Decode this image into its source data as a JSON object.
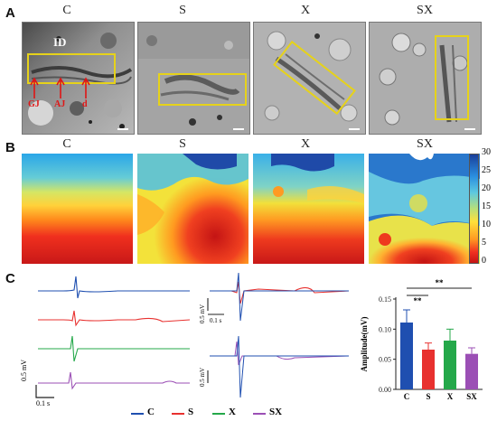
{
  "panel_a": {
    "letter": "A",
    "columns": [
      "C",
      "S",
      "X",
      "SX"
    ],
    "inset_labels": {
      "id": "ID",
      "gj": "GJ",
      "aj": "AJ",
      "d": "d"
    }
  },
  "panel_b": {
    "letter": "B",
    "columns": [
      "C",
      "S",
      "X",
      "SX"
    ],
    "colorbar_ticks": [
      "30",
      "25",
      "20",
      "15",
      "10",
      "5",
      "0"
    ]
  },
  "panel_c": {
    "letter": "C",
    "scale_voltage": "0.5 mV",
    "scale_time": "0.1 s",
    "legend": [
      "C",
      "S",
      "X",
      "SX"
    ]
  },
  "colors": {
    "C": "#1f4fb0",
    "S": "#e8312f",
    "X": "#24a84a",
    "SX": "#9b4fb5",
    "box": "#e6d21a",
    "arrow": "#e01515"
  },
  "chart_data": {
    "type": "bar",
    "categories": [
      "C",
      "S",
      "X",
      "SX"
    ],
    "values": [
      0.111,
      0.066,
      0.081,
      0.059
    ],
    "errors": [
      0.021,
      0.011,
      0.019,
      0.01
    ],
    "ylabel": "Amplitude(mV)",
    "yticks": [
      "0.00",
      "0.05",
      "0.10",
      "0.15"
    ],
    "ylim": [
      0,
      0.15
    ],
    "significance": [
      "**",
      "**"
    ]
  }
}
